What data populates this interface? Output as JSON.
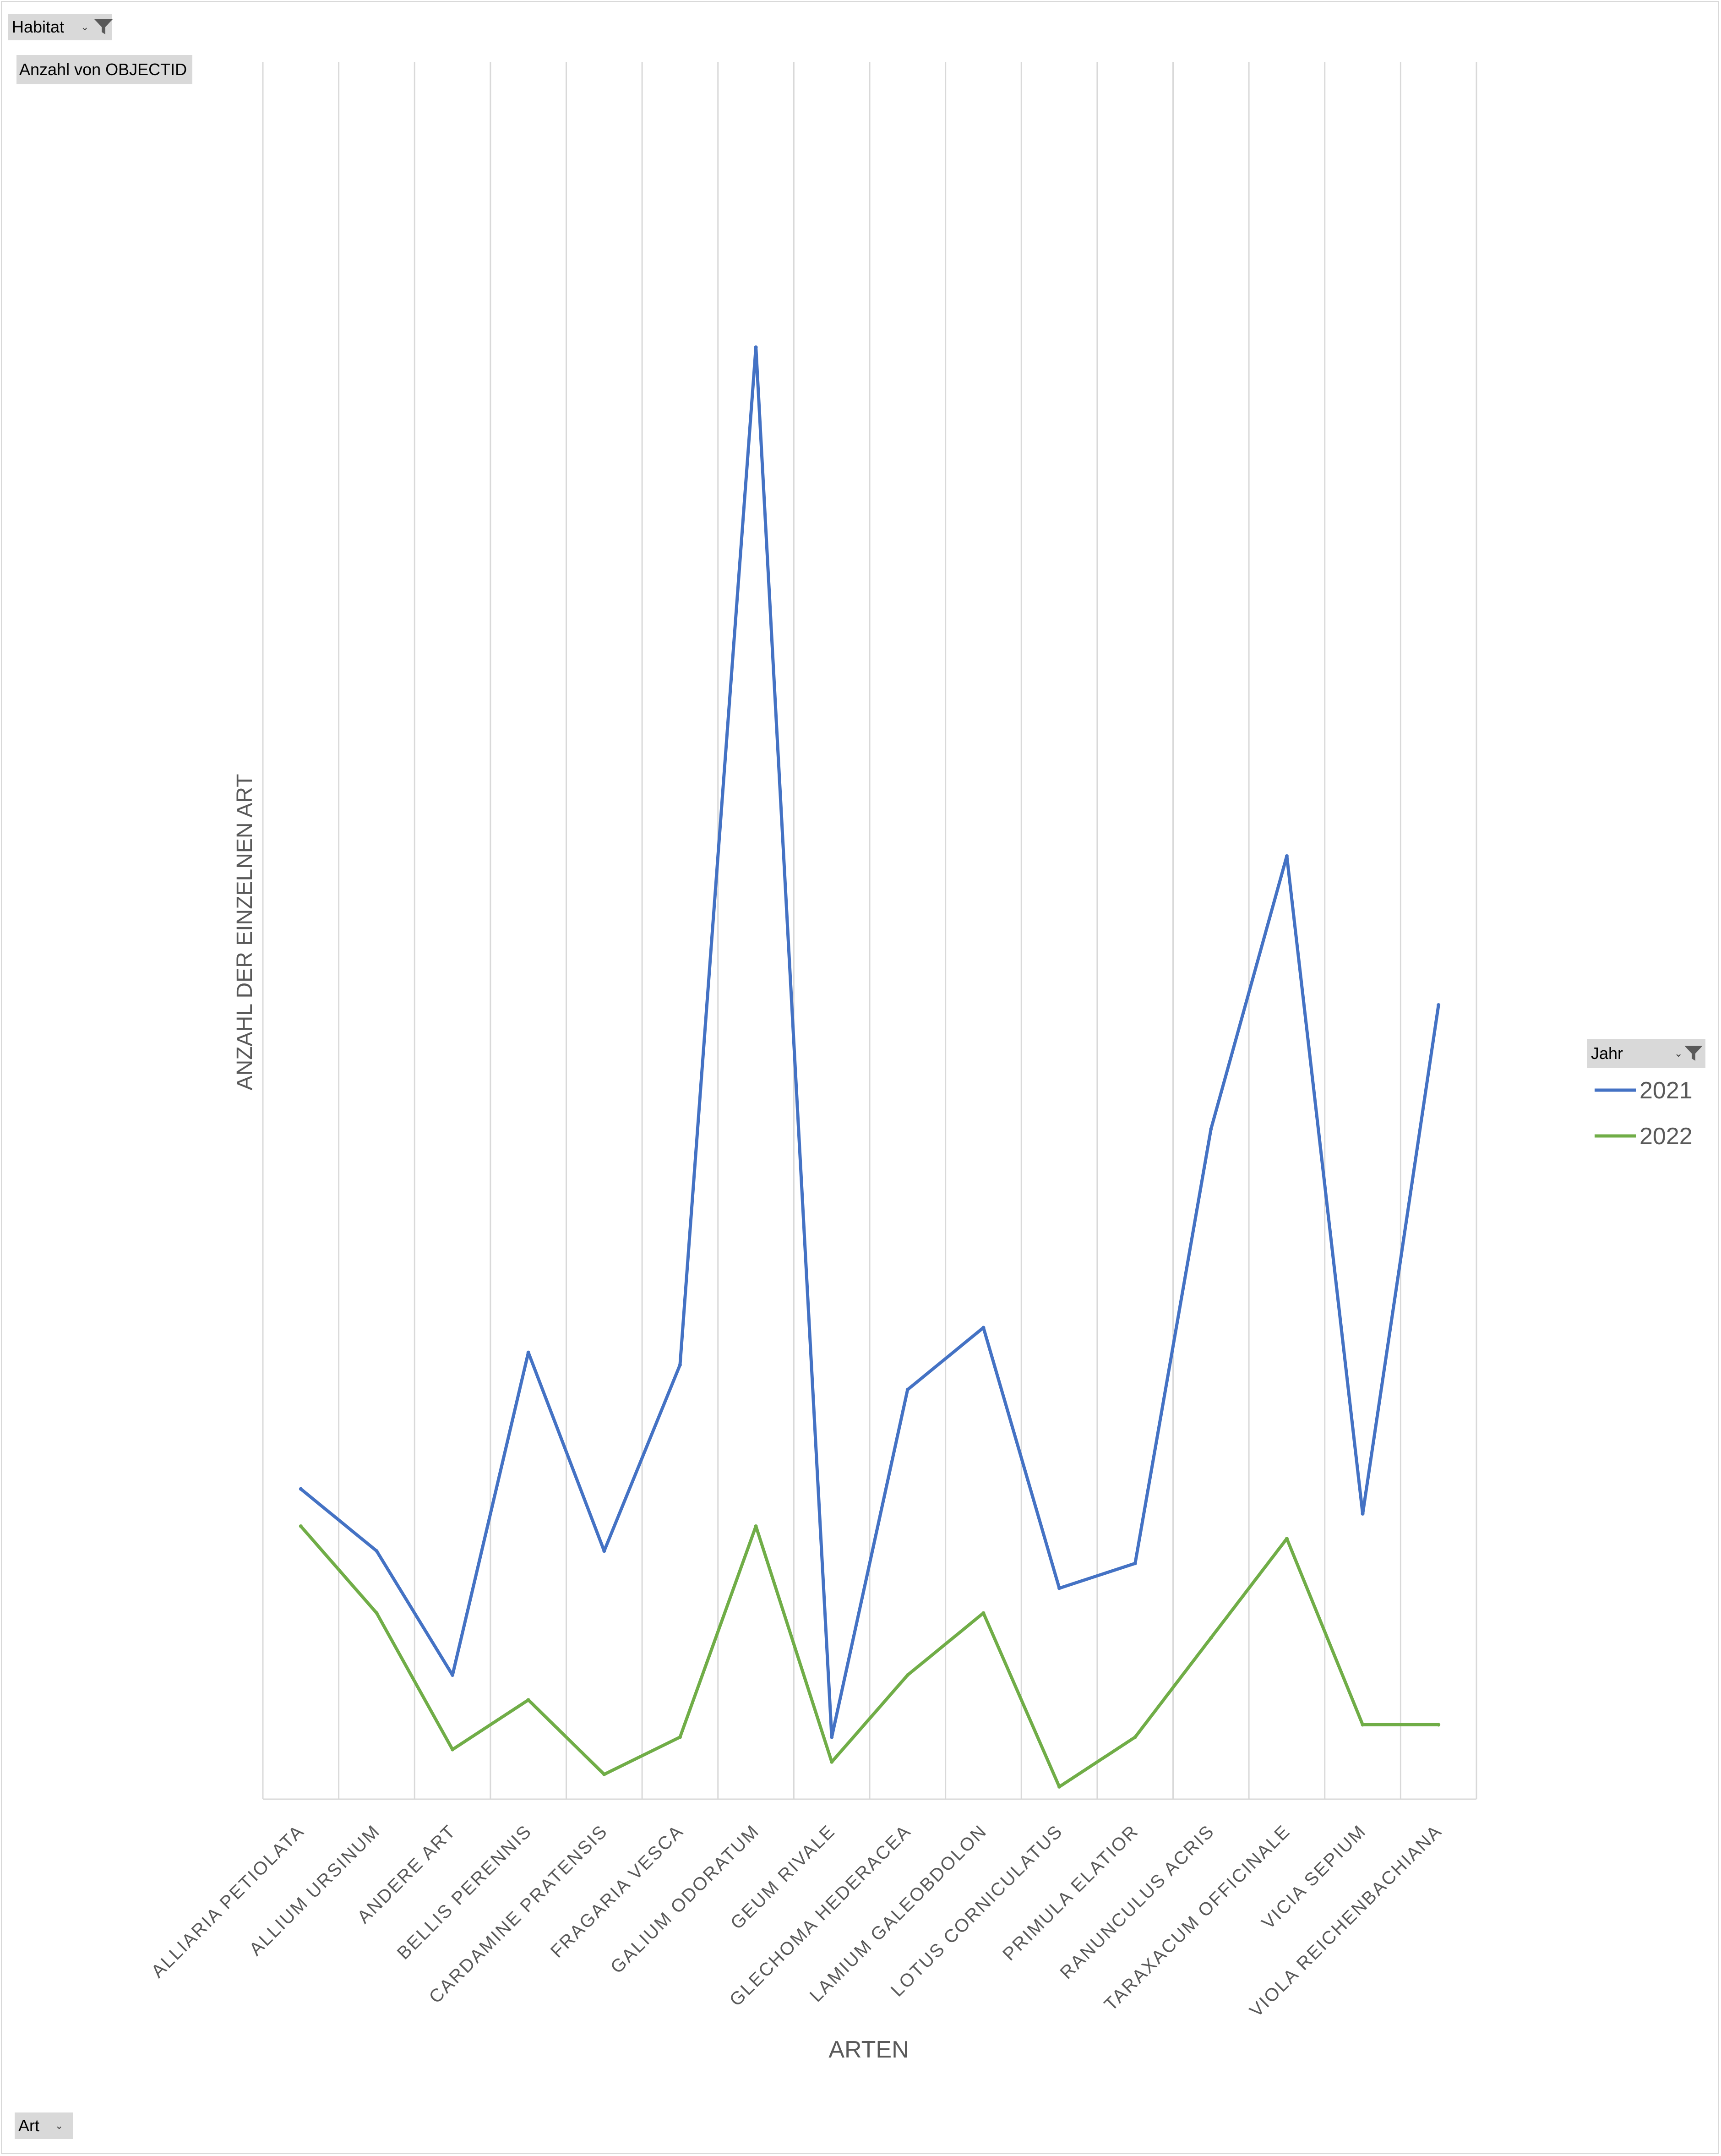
{
  "filters": {
    "habitat_label": "Habitat",
    "value_field_label": "Anzahl von OBJECTID",
    "legend_field_label": "Jahr",
    "axis_field_label": "Art"
  },
  "icons": {
    "filter": "filter-funnel-icon",
    "dropdown": "dropdown-arrow-icon"
  },
  "colors": {
    "series_2021": "#4472C4",
    "series_2022": "#70AD47",
    "gridline": "#d9d9d9",
    "axis_text": "#595959",
    "field_button": "#d9d9d9"
  },
  "chart_data": {
    "type": "line",
    "title": "",
    "xlabel": "ARTEN",
    "ylabel": "ANZAHL DER EINZELNEN ART",
    "categories": [
      "ALLIARIA PETIOLATA",
      "ALLIUM URSINUM",
      "ANDERE ART",
      "BELLIS PERENNIS",
      "CARDAMINE PRATENSIS",
      "FRAGARIA VESCA",
      "GALIUM ODORATUM",
      "GEUM RIVALE",
      "GLECHOMA HEDERACEA",
      "LAMIUM GALEOBDOLON",
      "LOTUS CORNICULATUS",
      "PRIMULA ELATIOR",
      "RANUNCULUS ACRIS",
      "TARAXACUM OFFICINALE",
      "VICIA SEPIUM",
      "VIOLA REICHENBACHIANA"
    ],
    "series": [
      {
        "name": "2021",
        "color": "#4472C4",
        "values": [
          25,
          20,
          10,
          36,
          20,
          35,
          117,
          5,
          33,
          38,
          17,
          19,
          54,
          76,
          23,
          64
        ]
      },
      {
        "name": "2022",
        "color": "#70AD47",
        "values": [
          22,
          15,
          4,
          8,
          2,
          5,
          22,
          3,
          10,
          15,
          1,
          5,
          13,
          21,
          6,
          6
        ]
      }
    ],
    "ylim": [
      0,
      140
    ],
    "y_tick_labels_visible": false,
    "grid": "vertical",
    "legend_position": "right"
  }
}
